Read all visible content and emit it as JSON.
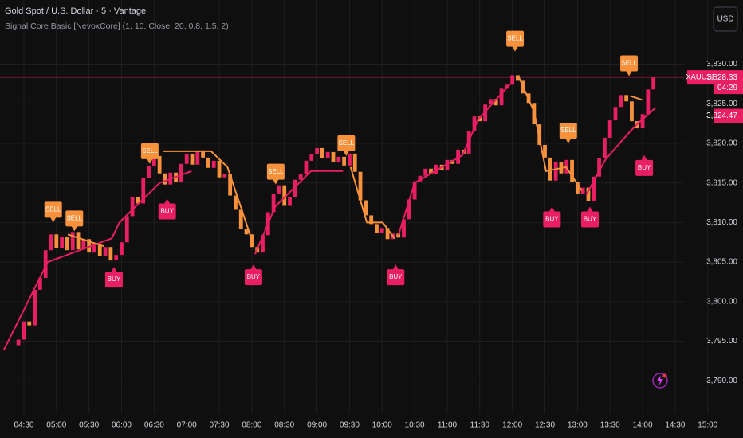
{
  "header": {
    "symbol": "Gold Spot / U.S. Dollar · 5 · Vantage",
    "indicator": "Signal Core Basic [NevoxCore] (1, 10, Close, 20, 0.8, 1.5, 2)",
    "currency": "USD"
  },
  "chart_data": {
    "type": "candlestick",
    "up_color": "#e91e63",
    "down_color": "#f7913b",
    "grid": true,
    "close": [
      3794.5,
      3795.2,
      3797.5,
      3797,
      3801.5,
      3803,
      3806.5,
      3808.5,
      3806.8,
      3808.2,
      3806.5,
      3808.8,
      3806.6,
      3807.9,
      3806.2,
      3807.1,
      3805.8,
      3806.9,
      3805.2,
      3805.9,
      3807.5,
      3810.8,
      3813.2,
      3812.4,
      3815.6,
      3817.1,
      3818.4,
      3816.2,
      3814.8,
      3816.3,
      3815.1,
      3817.4,
      3818.6,
      3817.3,
      3819.1,
      3818.2,
      3816.9,
      3817.8,
      3815.7,
      3816.1,
      3813.4,
      3811.6,
      3809.2,
      3808.5,
      3806.9,
      3806.2,
      3808.4,
      3811.3,
      3813.6,
      3814.7,
      3812.1,
      3813.2,
      3815.4,
      3816.1,
      3817.8,
      3818.6,
      3819.4,
      3818.1,
      3818.9,
      3817.6,
      3818.3,
      3817.2,
      3818.7,
      3816.4,
      3812.8,
      3810.9,
      3809.8,
      3808.7,
      3809.3,
      3807.9,
      3808.6,
      3808.1,
      3810.4,
      3812.9,
      3815.2,
      3815.9,
      3816.8,
      3816.1,
      3817.3,
      3816.6,
      3817.9,
      3817.4,
      3819.2,
      3818.7,
      3821.6,
      3823.4,
      3822.8,
      3824.9,
      3825.6,
      3824.8,
      3826.9,
      3827.4,
      3828.6,
      3827.9,
      3826.3,
      3825.1,
      3822.4,
      3819.8,
      3818.2,
      3815.3,
      3817.6,
      3816.2,
      3817.9,
      3815.1,
      3813.6,
      3814.4,
      3812.7,
      3815.8,
      3818.1,
      3820.7,
      3822.9,
      3824.6,
      3826.1,
      3825.3,
      3822.8,
      3821.9,
      3823.7,
      3826.8,
      3828.3
    ],
    "series": [
      {
        "color": "#e91e63",
        "x": [
          -1.7,
          6.4,
          18.2,
          19.6,
          27,
          32.9,
          null,
          44.6,
          48.3,
          54.9,
          60.8,
          null,
          71,
          74,
          82.8,
          85.7,
          91.6,
          null,
          105.6,
          109.2,
          113.7,
          115.1,
          118.4
        ],
        "values": [
          3793.9,
          3805,
          3808,
          3810,
          3815,
          3816.5,
          null,
          3806,
          3812,
          3816.5,
          3816.5,
          null,
          3808.4,
          3815,
          3818.5,
          3823,
          3827.5,
          null,
          3813.5,
          3818,
          3821.5,
          3822.5,
          3824.5
        ]
      },
      {
        "color": "#f7913b",
        "x": [
          10.1,
          16.7,
          null,
          27.7,
          36.5,
          39.5,
          43.9,
          null,
          62.2,
          65.2,
          68.1,
          70.3,
          null,
          93.1,
          96,
          98.2,
          101.9,
          104.8,
          null,
          113.7,
          115.9
        ],
        "values": [
          3808.5,
          3807,
          null,
          3819,
          3819,
          3817,
          3808,
          null,
          3817,
          3810,
          3810,
          3808,
          null,
          3828.5,
          3824,
          3816.5,
          3817,
          3814,
          null,
          3826,
          3825.5
        ]
      }
    ],
    "signals": [
      {
        "label": "SELL",
        "x": 7.4,
        "price": 3810
      },
      {
        "label": "SELL",
        "x": 11.3,
        "price": 3808.9
      },
      {
        "label": "BUY",
        "x": 18.6,
        "price": 3804.4
      },
      {
        "label": "SELL",
        "x": 25.2,
        "price": 3817.4
      },
      {
        "label": "BUY",
        "x": 28.4,
        "price": 3813
      },
      {
        "label": "BUY",
        "x": 44.3,
        "price": 3804.7
      },
      {
        "label": "SELL",
        "x": 48.4,
        "price": 3814.8
      },
      {
        "label": "SELL",
        "x": 61.4,
        "price": 3818.4
      },
      {
        "label": "BUY",
        "x": 70.5,
        "price": 3804.7
      },
      {
        "label": "SELL",
        "x": 92.5,
        "price": 3831.6
      },
      {
        "label": "BUY",
        "x": 99.3,
        "price": 3812
      },
      {
        "label": "SELL",
        "x": 102.3,
        "price": 3820
      },
      {
        "label": "BUY",
        "x": 106.3,
        "price": 3812
      },
      {
        "label": "SELL",
        "x": 113.5,
        "price": 3828.5
      },
      {
        "label": "BUY",
        "x": 116.3,
        "price": 3818.5
      }
    ],
    "xlim": [
      -2.4,
      134.5
    ],
    "xticks": [
      {
        "value": 2,
        "label": "04:30"
      },
      {
        "value": 8,
        "label": "05:00"
      },
      {
        "value": 14,
        "label": "05:30"
      },
      {
        "value": 20,
        "label": "06:00"
      },
      {
        "value": 26,
        "label": "06:30"
      },
      {
        "value": 32,
        "label": "07:00"
      },
      {
        "value": 38,
        "label": "07:30"
      },
      {
        "value": 44,
        "label": "08:00"
      },
      {
        "value": 50,
        "label": "08:30"
      },
      {
        "value": 56,
        "label": "09:00"
      },
      {
        "value": 62,
        "label": "09:30"
      },
      {
        "value": 68,
        "label": "10:00"
      },
      {
        "value": 74,
        "label": "10:30"
      },
      {
        "value": 80,
        "label": "11:00"
      },
      {
        "value": 86,
        "label": "11:30"
      },
      {
        "value": 92,
        "label": "12:00"
      },
      {
        "value": 98,
        "label": "12:30"
      },
      {
        "value": 104,
        "label": "13:00"
      },
      {
        "value": 110,
        "label": "13:30"
      },
      {
        "value": 116,
        "label": "14:00"
      },
      {
        "value": 122,
        "label": "14:30"
      },
      {
        "value": 128,
        "label": "15:00"
      }
    ],
    "ylim": [
      3785.8,
      3838.1
    ],
    "yticks": [
      {
        "value": 3790,
        "label": "3,790.00"
      },
      {
        "value": 3795,
        "label": "3,795.00"
      },
      {
        "value": 3800,
        "label": "3,800.00"
      },
      {
        "value": 3805,
        "label": "3,805.00"
      },
      {
        "value": 3810,
        "label": "3,810.00"
      },
      {
        "value": 3815,
        "label": "3,815.00"
      },
      {
        "value": 3820,
        "label": "3,820.00"
      },
      {
        "value": 3825,
        "label": "3,825.00"
      },
      {
        "value": 3830,
        "label": "3,830.00"
      }
    ],
    "last_price": {
      "symbol": "XAUUSD",
      "value": 3828.33,
      "label": "3,828.33",
      "countdown": "04:29"
    },
    "indicator_value": {
      "value": 3824.47,
      "label": "3,824.47"
    }
  }
}
